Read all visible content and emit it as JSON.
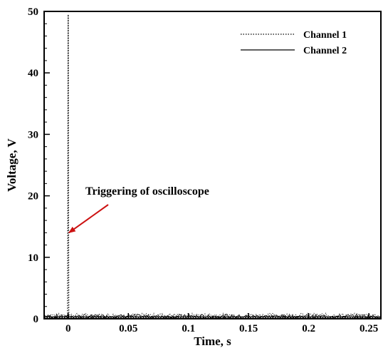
{
  "chart_data": {
    "type": "line",
    "title": "",
    "xlabel": "Time, s",
    "ylabel": "Voltage, V",
    "xlim": [
      -0.02,
      0.26
    ],
    "ylim": [
      0,
      50
    ],
    "xticks": [
      0,
      0.05,
      0.1,
      0.15,
      0.2,
      0.25
    ],
    "xtick_labels": [
      "0",
      "0.05",
      "0.1",
      "0.15",
      "0.2",
      "0.25"
    ],
    "yticks": [
      0,
      10,
      20,
      30,
      40,
      50
    ],
    "ytick_labels": [
      "0",
      "10",
      "20",
      "30",
      "40",
      "50"
    ],
    "grid": false,
    "legend_position": "top-right",
    "series": [
      {
        "name": "Channel 1",
        "line_style": "dotted",
        "color": "#000000",
        "x": [
          -0.02,
          -0.0005,
          0,
          0.0005,
          0.26
        ],
        "y": [
          0.2,
          0.2,
          49.5,
          0.2,
          0.2
        ]
      },
      {
        "name": "Channel 2",
        "line_style": "solid",
        "color": "#000000",
        "x": [
          -0.02,
          0.26
        ],
        "y": [
          0.3,
          0.3
        ]
      }
    ],
    "annotations": [
      {
        "text": "Triggering of oscilloscope",
        "arrow_color": "#cc1111",
        "arrow_target": [
          0,
          14
        ]
      }
    ]
  }
}
